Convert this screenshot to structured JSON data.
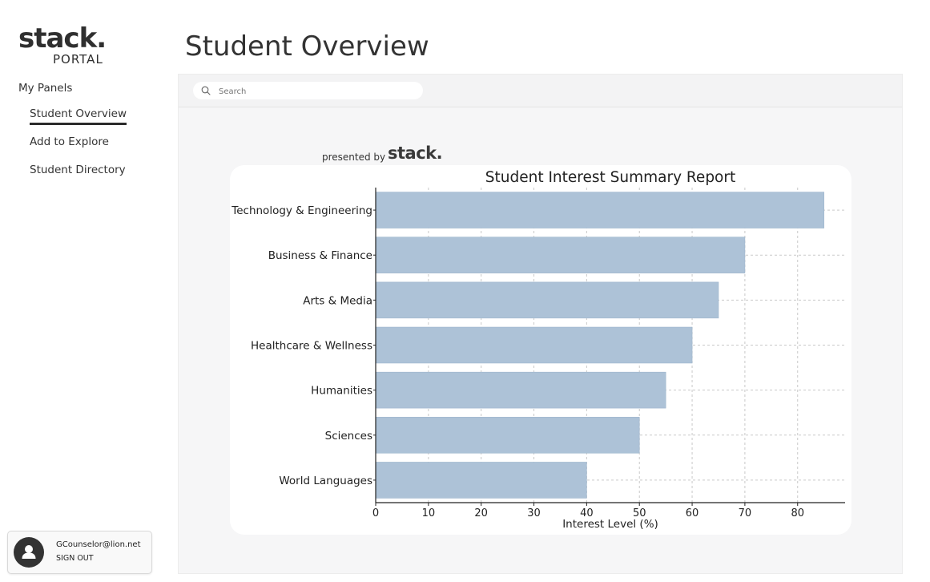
{
  "sidebar": {
    "logo_word": "stack.",
    "logo_sub": "PORTAL",
    "panels_heading": "My Panels",
    "items": [
      {
        "label": "Student Overview",
        "active": true
      },
      {
        "label": "Add to Explore",
        "active": false
      },
      {
        "label": "Student Directory",
        "active": false
      }
    ],
    "user": {
      "email": "GCounselor@lion.net",
      "sign_out": "SIGN OUT",
      "avatar_icon": "user-icon"
    }
  },
  "header": {
    "title": "Student Overview"
  },
  "search": {
    "placeholder": "Search",
    "value": "",
    "icon": "search-icon"
  },
  "presented": {
    "prefix": "presented by",
    "brand": "stack."
  },
  "colors": {
    "bar": "#adc2d7",
    "bar_edge": "#9eb5cc",
    "grid": "#c9c9c9"
  },
  "chart_data": {
    "type": "bar",
    "orientation": "horizontal",
    "title": "Student Interest Summary Report",
    "xlabel": "Interest Level (%)",
    "ylabel": "",
    "categories": [
      "Technology & Engineering",
      "Business & Finance",
      "Arts & Media",
      "Healthcare & Wellness",
      "Humanities",
      "Sciences",
      "World Languages"
    ],
    "values": [
      85,
      70,
      65,
      60,
      55,
      50,
      40
    ],
    "xlim": [
      0,
      89
    ],
    "xticks": [
      0,
      10,
      20,
      30,
      40,
      50,
      60,
      70,
      80
    ],
    "grid": true
  }
}
